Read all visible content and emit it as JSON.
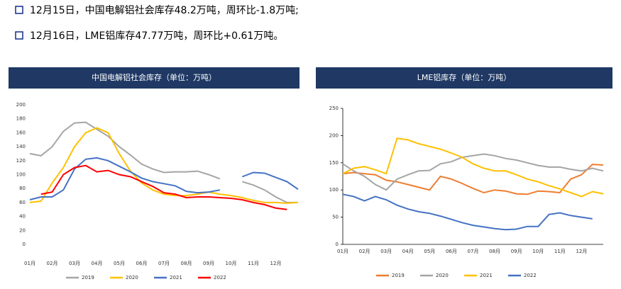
{
  "bullets": [
    "12月15日，中国电解铝社会库存48.2万吨，周环比-1.8万吨;",
    "12月16日，LME铝库存47.77万吨，周环比+0.61万吨。"
  ],
  "chart_data": [
    {
      "type": "line",
      "title": "中国电解铝社会库存（单位：万吨）",
      "categories": [
        "01月",
        null,
        "02月",
        null,
        "03月",
        null,
        "04月",
        null,
        "05月",
        null,
        "06月",
        null,
        "07月",
        null,
        "08月",
        null,
        "09月",
        null,
        "10月",
        null,
        "11月",
        null,
        "12月",
        null,
        null
      ],
      "ylim": [
        0,
        200
      ],
      "yticks": [
        0,
        20,
        40,
        60,
        80,
        100,
        120,
        140,
        160,
        180,
        200
      ],
      "series": [
        {
          "name": "2019",
          "color": "#a5a5a5",
          "values": [
            130,
            127,
            140,
            162,
            174,
            175,
            165,
            155,
            140,
            128,
            115,
            108,
            103,
            104,
            104,
            105,
            100,
            94,
            null,
            90,
            85,
            78,
            68,
            60,
            60
          ]
        },
        {
          "name": "2020",
          "color": "#ffc000",
          "values": [
            60,
            62,
            88,
            110,
            140,
            160,
            167,
            160,
            130,
            105,
            88,
            78,
            72,
            70,
            70,
            72,
            75,
            72,
            70,
            67,
            63,
            60,
            60,
            59,
            60
          ]
        },
        {
          "name": "2021",
          "color": "#4472c4",
          "values": [
            64,
            68,
            68,
            78,
            108,
            122,
            124,
            120,
            112,
            104,
            95,
            90,
            87,
            84,
            76,
            74,
            75,
            78,
            null,
            97,
            103,
            102,
            96,
            90,
            79
          ]
        },
        {
          "name": "2022",
          "color": "#ff0000",
          "values": [
            null,
            72,
            75,
            100,
            110,
            113,
            104,
            106,
            100,
            97,
            90,
            83,
            74,
            72,
            67,
            68,
            68,
            67,
            66,
            64,
            60,
            57,
            52,
            50,
            null
          ]
        }
      ]
    },
    {
      "type": "line",
      "title": "LME铝库存（单位：万吨）",
      "categories": [
        "01月",
        null,
        "02月",
        null,
        "03月",
        null,
        "04月",
        null,
        "05月",
        null,
        "06月",
        null,
        "07月",
        null,
        "08月",
        null,
        "09月",
        null,
        "10月",
        null,
        "11月",
        null,
        "12月",
        null,
        null
      ],
      "ylim": [
        0,
        250
      ],
      "yticks": [
        0,
        50,
        100,
        150,
        200,
        250
      ],
      "series": [
        {
          "name": "2019",
          "color": "#ed7d31",
          "values": [
            130,
            132,
            130,
            128,
            118,
            115,
            110,
            105,
            100,
            125,
            120,
            112,
            103,
            95,
            100,
            98,
            93,
            92,
            98,
            97,
            95,
            120,
            128,
            147,
            146
          ]
        },
        {
          "name": "2020",
          "color": "#a5a5a5",
          "values": [
            148,
            135,
            125,
            110,
            100,
            120,
            128,
            135,
            136,
            148,
            152,
            160,
            163,
            166,
            163,
            158,
            155,
            150,
            145,
            142,
            142,
            138,
            135,
            140,
            135
          ]
        },
        {
          "name": "2021",
          "color": "#ffc000",
          "values": [
            130,
            140,
            143,
            137,
            130,
            195,
            192,
            185,
            180,
            175,
            168,
            160,
            148,
            140,
            135,
            135,
            128,
            120,
            115,
            108,
            102,
            95,
            88,
            97,
            93
          ]
        },
        {
          "name": "2022",
          "color": "#4472c4",
          "values": [
            92,
            88,
            80,
            88,
            82,
            72,
            65,
            60,
            57,
            52,
            46,
            40,
            35,
            32,
            29,
            27,
            28,
            33,
            33,
            55,
            58,
            53,
            50,
            47,
            null
          ]
        }
      ]
    }
  ]
}
